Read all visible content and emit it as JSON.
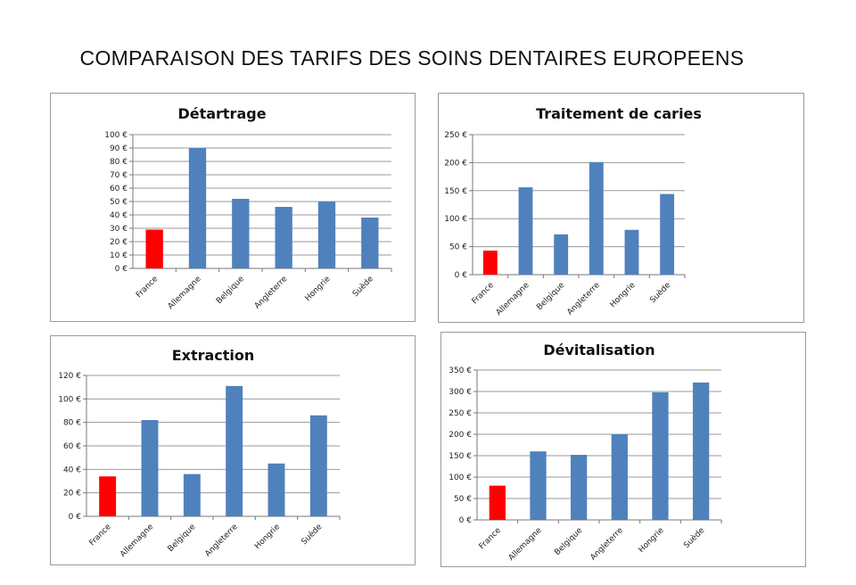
{
  "page": {
    "title": "COMPARAISON DES TARIFS DES SOINS DENTAIRES EUROPEENS"
  },
  "colors": {
    "highlight": "#ff0000",
    "bar": "#4f81bd"
  },
  "chart_data": [
    {
      "type": "bar",
      "title": "Détartrage",
      "categories": [
        "France",
        "Allemagne",
        "Belgique",
        "Angleterre",
        "Hongrie",
        "Suède"
      ],
      "values": [
        29,
        90,
        52,
        46,
        50,
        38
      ],
      "highlight_index": 0,
      "ylim": [
        0,
        100
      ],
      "yticks": [
        0,
        10,
        20,
        30,
        40,
        50,
        60,
        70,
        80,
        90,
        100
      ],
      "ytick_labels": [
        "0 €",
        "10 €",
        "20 €",
        "30 €",
        "40 €",
        "50 €",
        "60 €",
        "70 €",
        "80 €",
        "90 €",
        "100 €"
      ],
      "grid": true,
      "legend": "none"
    },
    {
      "type": "bar",
      "title": "Traitement de caries",
      "categories": [
        "France",
        "Allemagne",
        "Belgique",
        "Angleterre",
        "Hongrie",
        "Suède"
      ],
      "values": [
        43,
        156,
        72,
        201,
        80,
        144
      ],
      "highlight_index": 0,
      "ylim": [
        0,
        250
      ],
      "yticks": [
        0,
        50,
        100,
        150,
        200,
        250
      ],
      "ytick_labels": [
        "0 €",
        "50 €",
        "100 €",
        "150 €",
        "200 €",
        "250 €"
      ],
      "grid": true,
      "legend": "none"
    },
    {
      "type": "bar",
      "title": "Extraction",
      "categories": [
        "France",
        "Allemagne",
        "Belgique",
        "Angleterre",
        "Hongrie",
        "Suède"
      ],
      "values": [
        34,
        82,
        36,
        111,
        45,
        86
      ],
      "highlight_index": 0,
      "ylim": [
        0,
        120
      ],
      "yticks": [
        0,
        20,
        40,
        60,
        80,
        100,
        120
      ],
      "ytick_labels": [
        "0 €",
        "20 €",
        "40 €",
        "60 €",
        "80 €",
        "100 €",
        "120 €"
      ],
      "grid": true,
      "legend": "none"
    },
    {
      "type": "bar",
      "title": "Dévitalisation",
      "categories": [
        "France",
        "Allemagne",
        "Belgique",
        "Angleterre",
        "Hongrie",
        "Suède"
      ],
      "values": [
        80,
        160,
        152,
        200,
        298,
        321
      ],
      "highlight_index": 0,
      "ylim": [
        0,
        350
      ],
      "yticks": [
        0,
        50,
        100,
        150,
        200,
        250,
        300,
        350
      ],
      "ytick_labels": [
        "0 €",
        "50 €",
        "100 €",
        "150 €",
        "200 €",
        "250 €",
        "300 €",
        "350 €"
      ],
      "grid": true,
      "legend": "none"
    }
  ]
}
